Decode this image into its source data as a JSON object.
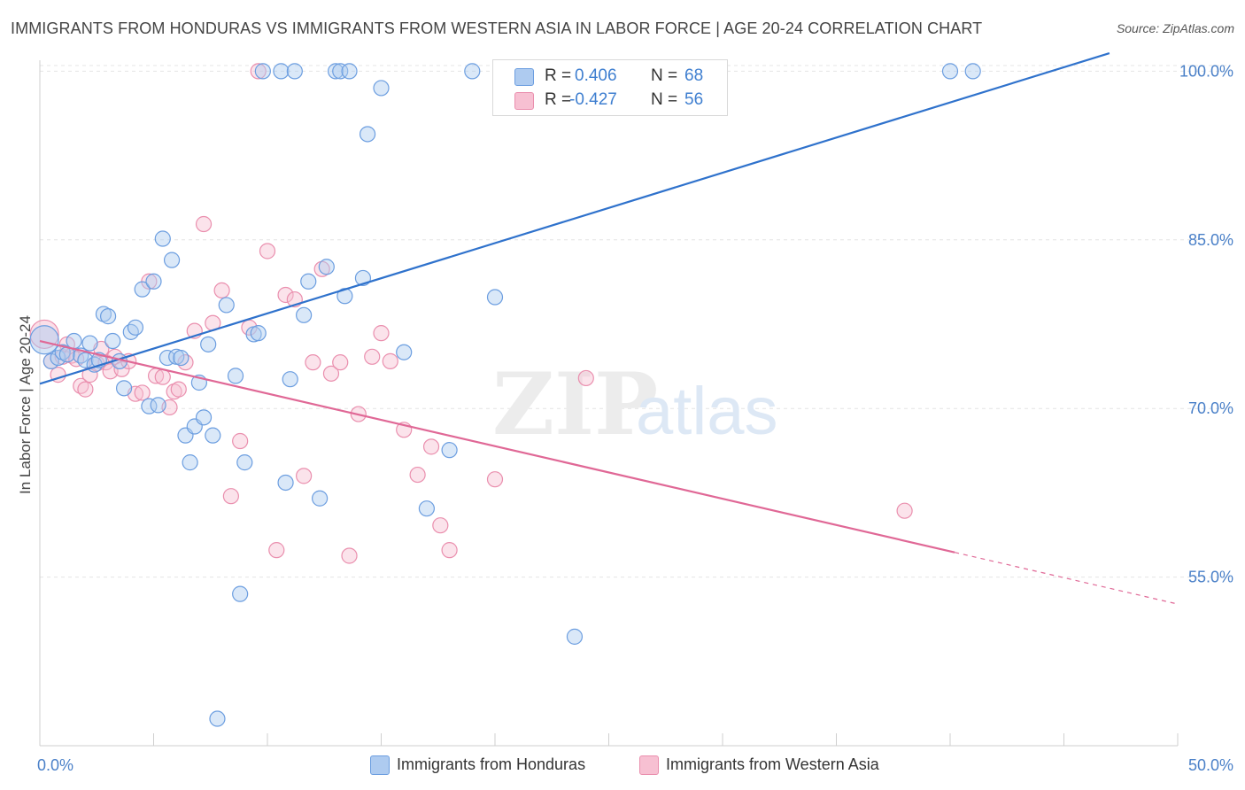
{
  "title": "IMMIGRANTS FROM HONDURAS VS IMMIGRANTS FROM WESTERN ASIA IN LABOR FORCE | AGE 20-24 CORRELATION CHART",
  "source": "Source: ZipAtlas.com",
  "watermark": {
    "zip": "ZIP",
    "atlas": "atlas"
  },
  "legend": {
    "rows": [
      {
        "r_label": "R =",
        "r_value": "0.406",
        "n_label": "N =",
        "n_value": "68"
      },
      {
        "r_label": "R =",
        "r_value": "-0.427",
        "n_label": "N =",
        "n_value": "56"
      }
    ]
  },
  "colors": {
    "blue_fill": "#aecbf0",
    "blue_stroke": "#6c9ee0",
    "blue_line": "#2f72cc",
    "pink_fill": "#f7c0d2",
    "pink_stroke": "#ea8fae",
    "pink_line": "#e06896",
    "grid": "#e4e4e4",
    "tick_text": "#4a80c8"
  },
  "chart_data": {
    "type": "scatter",
    "title": "IMMIGRANTS FROM HONDURAS VS IMMIGRANTS FROM WESTERN ASIA IN LABOR FORCE | AGE 20-24 CORRELATION CHART",
    "xlabel": "",
    "ylabel": "In Labor Force | Age 20-24",
    "xlim": [
      0,
      50
    ],
    "ylim": [
      40,
      102
    ],
    "x_tick_labels": [
      {
        "value": 0,
        "label": "0.0%"
      },
      {
        "value": 50,
        "label": "50.0%"
      }
    ],
    "y_tick_labels": [
      {
        "value": 100,
        "label": "100.0%"
      },
      {
        "value": 85,
        "label": "85.0%"
      },
      {
        "value": 70,
        "label": "70.0%"
      },
      {
        "value": 55,
        "label": "55.0%"
      }
    ],
    "grid": true,
    "legend_position": "top-center",
    "series": [
      {
        "name": "Immigrants from Honduras",
        "color": "blue",
        "trend": {
          "x": [
            0,
            47.0
          ],
          "y": [
            72.2,
            101.6
          ]
        },
        "points": [
          [
            0.2,
            76.1
          ],
          [
            0.5,
            74.2
          ],
          [
            0.8,
            74.5
          ],
          [
            1.0,
            75.0
          ],
          [
            1.2,
            74.8
          ],
          [
            1.5,
            76.0
          ],
          [
            1.8,
            74.7
          ],
          [
            2.0,
            74.3
          ],
          [
            2.2,
            75.8
          ],
          [
            2.4,
            73.9
          ],
          [
            2.6,
            74.3
          ],
          [
            2.8,
            78.4
          ],
          [
            3.0,
            78.2
          ],
          [
            3.2,
            76.0
          ],
          [
            3.5,
            74.2
          ],
          [
            3.7,
            71.8
          ],
          [
            4.0,
            76.8
          ],
          [
            4.2,
            77.2
          ],
          [
            4.5,
            80.6
          ],
          [
            4.8,
            70.2
          ],
          [
            5.0,
            81.3
          ],
          [
            5.2,
            70.3
          ],
          [
            5.4,
            85.1
          ],
          [
            5.6,
            74.5
          ],
          [
            5.8,
            83.2
          ],
          [
            6.0,
            74.6
          ],
          [
            6.2,
            74.5
          ],
          [
            6.4,
            67.6
          ],
          [
            6.6,
            65.2
          ],
          [
            6.8,
            68.4
          ],
          [
            7.0,
            72.3
          ],
          [
            7.2,
            69.2
          ],
          [
            7.4,
            75.7
          ],
          [
            7.6,
            67.6
          ],
          [
            7.8,
            42.4
          ],
          [
            8.2,
            79.2
          ],
          [
            8.6,
            72.9
          ],
          [
            8.8,
            53.5
          ],
          [
            9.0,
            65.2
          ],
          [
            9.4,
            76.6
          ],
          [
            9.6,
            76.7
          ],
          [
            9.8,
            100.0
          ],
          [
            10.6,
            100.0
          ],
          [
            10.8,
            63.4
          ],
          [
            11.0,
            72.6
          ],
          [
            11.2,
            100.0
          ],
          [
            11.6,
            78.3
          ],
          [
            11.8,
            81.3
          ],
          [
            12.3,
            62.0
          ],
          [
            12.6,
            82.6
          ],
          [
            13.0,
            100.0
          ],
          [
            13.2,
            100.0
          ],
          [
            13.4,
            80.0
          ],
          [
            13.6,
            100.0
          ],
          [
            14.2,
            81.6
          ],
          [
            14.4,
            94.4
          ],
          [
            15.0,
            98.5
          ],
          [
            16.0,
            75.0
          ],
          [
            17.0,
            61.1
          ],
          [
            18.0,
            66.3
          ],
          [
            19.0,
            100.0
          ],
          [
            20.0,
            79.9
          ],
          [
            23.5,
            49.7
          ],
          [
            25.0,
            100.0
          ],
          [
            26.0,
            100.0
          ],
          [
            27.0,
            100.0
          ],
          [
            40.0,
            100.0
          ],
          [
            41.0,
            100.0
          ]
        ]
      },
      {
        "name": "Immigrants from Western Asia",
        "color": "pink",
        "trend": {
          "x": [
            0,
            40.2
          ],
          "y": [
            76.0,
            57.2
          ]
        },
        "trend_dashed": {
          "x": [
            40.2,
            50.0
          ],
          "y": [
            57.2,
            52.6
          ]
        },
        "points": [
          [
            0.2,
            76.6
          ],
          [
            0.5,
            74.2
          ],
          [
            0.8,
            73.0
          ],
          [
            1.0,
            74.6
          ],
          [
            1.2,
            75.7
          ],
          [
            1.4,
            74.7
          ],
          [
            1.6,
            74.4
          ],
          [
            1.8,
            72.0
          ],
          [
            2.0,
            71.7
          ],
          [
            2.2,
            73.0
          ],
          [
            2.5,
            74.0
          ],
          [
            2.7,
            75.3
          ],
          [
            2.9,
            74.1
          ],
          [
            3.1,
            73.3
          ],
          [
            3.3,
            74.6
          ],
          [
            3.6,
            73.5
          ],
          [
            3.9,
            74.2
          ],
          [
            4.2,
            71.3
          ],
          [
            4.5,
            71.4
          ],
          [
            4.8,
            81.3
          ],
          [
            5.1,
            72.9
          ],
          [
            5.4,
            72.8
          ],
          [
            5.7,
            70.1
          ],
          [
            5.9,
            71.5
          ],
          [
            6.1,
            71.7
          ],
          [
            6.4,
            74.1
          ],
          [
            6.8,
            76.9
          ],
          [
            7.2,
            86.4
          ],
          [
            7.6,
            77.6
          ],
          [
            8.0,
            80.5
          ],
          [
            8.4,
            62.2
          ],
          [
            8.8,
            67.1
          ],
          [
            9.2,
            77.2
          ],
          [
            9.6,
            100.0
          ],
          [
            10.0,
            84.0
          ],
          [
            10.4,
            57.4
          ],
          [
            10.8,
            80.1
          ],
          [
            11.2,
            79.7
          ],
          [
            11.6,
            64.0
          ],
          [
            12.0,
            74.1
          ],
          [
            12.4,
            82.4
          ],
          [
            12.8,
            73.1
          ],
          [
            13.2,
            74.1
          ],
          [
            13.6,
            56.9
          ],
          [
            14.0,
            69.5
          ],
          [
            14.6,
            74.6
          ],
          [
            15.0,
            76.7
          ],
          [
            15.4,
            74.2
          ],
          [
            16.0,
            68.1
          ],
          [
            16.6,
            64.1
          ],
          [
            17.2,
            66.6
          ],
          [
            17.6,
            59.6
          ],
          [
            18.0,
            57.4
          ],
          [
            20.0,
            63.7
          ],
          [
            24.0,
            72.7
          ],
          [
            38.0,
            60.9
          ]
        ]
      }
    ]
  },
  "bottom_legend": [
    "Immigrants from Honduras",
    "Immigrants from Western Asia"
  ]
}
